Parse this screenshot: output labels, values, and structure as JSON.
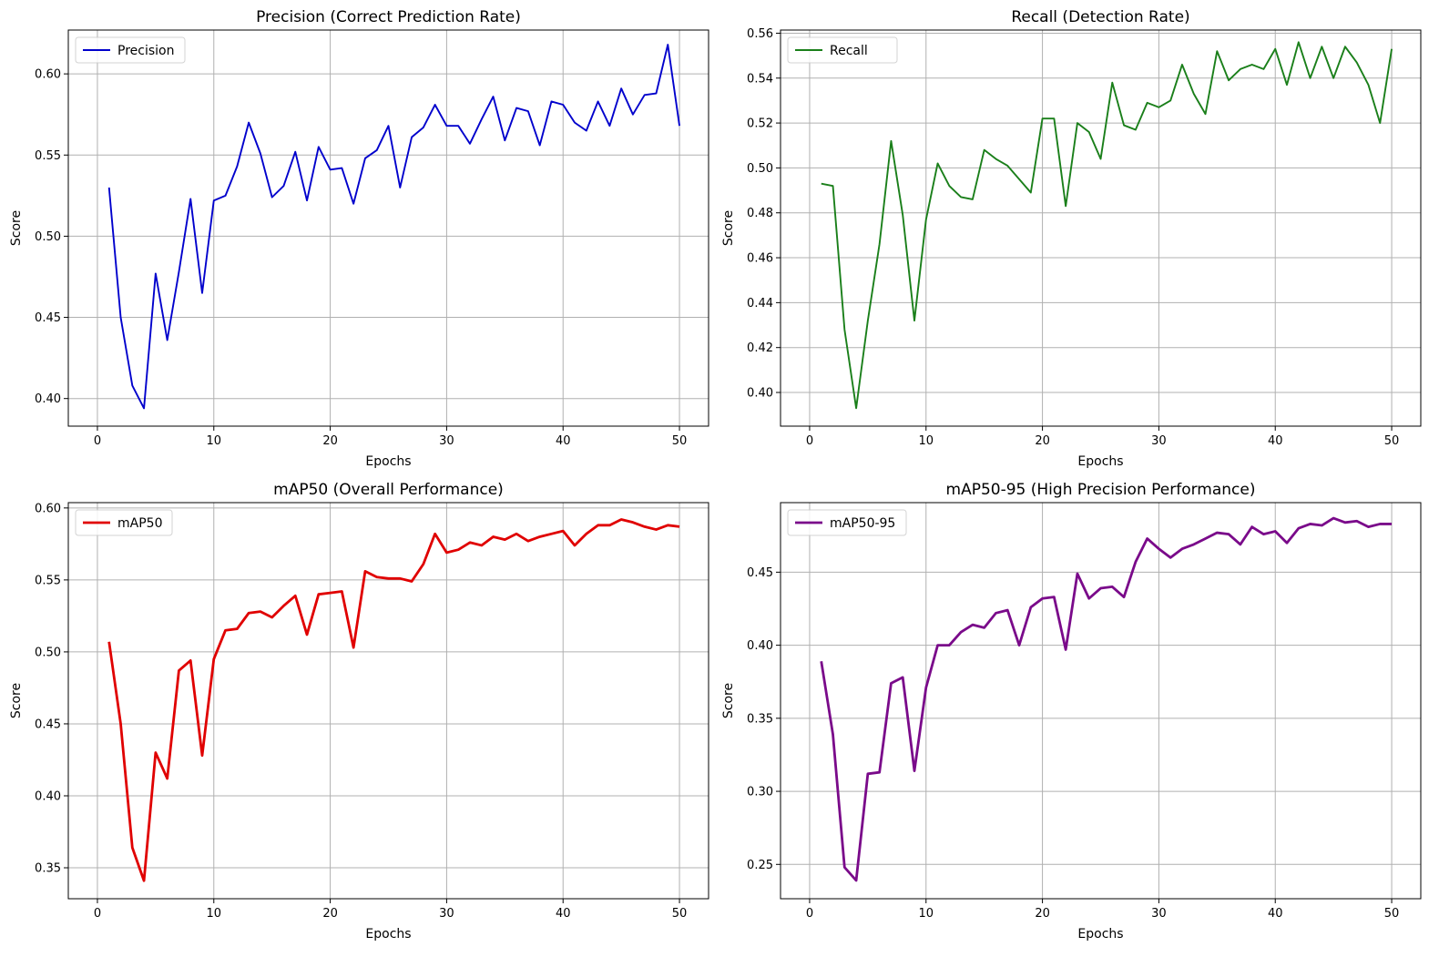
{
  "chart_data": [
    {
      "type": "line",
      "title": "Precision (Correct Prediction Rate)",
      "xlabel": "Epochs",
      "ylabel": "Score",
      "grid": true,
      "legend_position": "top-left",
      "xlim": [
        -2.5,
        52.5
      ],
      "ylim": [
        0.383,
        0.627
      ],
      "xticks": [
        0,
        10,
        20,
        30,
        40,
        50
      ],
      "yticks": [
        0.4,
        0.45,
        0.5,
        0.55,
        0.6
      ],
      "ytick_labels": [
        "0.40",
        "0.45",
        "0.50",
        "0.55",
        "0.60"
      ],
      "series": [
        {
          "name": "Precision",
          "color": "#0000cc",
          "x": [
            1,
            2,
            3,
            4,
            5,
            6,
            7,
            8,
            9,
            10,
            11,
            12,
            13,
            14,
            15,
            16,
            17,
            18,
            19,
            20,
            21,
            22,
            23,
            24,
            25,
            26,
            27,
            28,
            29,
            30,
            31,
            32,
            33,
            34,
            35,
            36,
            37,
            38,
            39,
            40,
            41,
            42,
            43,
            44,
            45,
            46,
            47,
            48,
            49,
            50
          ],
          "values": [
            0.53,
            0.45,
            0.408,
            0.394,
            0.477,
            0.436,
            0.478,
            0.523,
            0.465,
            0.522,
            0.525,
            0.543,
            0.57,
            0.551,
            0.524,
            0.531,
            0.552,
            0.522,
            0.555,
            0.541,
            0.542,
            0.52,
            0.548,
            0.553,
            0.568,
            0.53,
            0.561,
            0.567,
            0.581,
            0.568,
            0.568,
            0.557,
            0.572,
            0.586,
            0.559,
            0.579,
            0.577,
            0.556,
            0.583,
            0.581,
            0.57,
            0.565,
            0.583,
            0.568,
            0.591,
            0.575,
            0.587,
            0.588,
            0.618,
            0.568
          ]
        }
      ]
    },
    {
      "type": "line",
      "title": "Recall (Detection Rate)",
      "xlabel": "Epochs",
      "ylabel": "Score",
      "grid": true,
      "legend_position": "top-left",
      "xlim": [
        -2.5,
        52.5
      ],
      "ylim": [
        0.385,
        0.5614
      ],
      "xticks": [
        0,
        10,
        20,
        30,
        40,
        50
      ],
      "yticks": [
        0.4,
        0.42,
        0.44,
        0.46,
        0.48,
        0.5,
        0.52,
        0.54,
        0.56
      ],
      "ytick_labels": [
        "0.40",
        "0.42",
        "0.44",
        "0.46",
        "0.48",
        "0.50",
        "0.52",
        "0.54",
        "0.56"
      ],
      "series": [
        {
          "name": "Recall",
          "color": "#1a7f1a",
          "x": [
            1,
            2,
            3,
            4,
            5,
            6,
            7,
            8,
            9,
            10,
            11,
            12,
            13,
            14,
            15,
            16,
            17,
            18,
            19,
            20,
            21,
            22,
            23,
            24,
            25,
            26,
            27,
            28,
            29,
            30,
            31,
            32,
            33,
            34,
            35,
            36,
            37,
            38,
            39,
            40,
            41,
            42,
            43,
            44,
            45,
            46,
            47,
            48,
            49,
            50
          ],
          "values": [
            0.493,
            0.492,
            0.428,
            0.393,
            0.432,
            0.466,
            0.512,
            0.479,
            0.432,
            0.477,
            0.502,
            0.492,
            0.487,
            0.486,
            0.508,
            0.504,
            0.501,
            0.495,
            0.489,
            0.522,
            0.522,
            0.483,
            0.52,
            0.516,
            0.504,
            0.538,
            0.519,
            0.517,
            0.529,
            0.527,
            0.53,
            0.546,
            0.533,
            0.524,
            0.552,
            0.539,
            0.544,
            0.546,
            0.544,
            0.553,
            0.537,
            0.556,
            0.54,
            0.554,
            0.54,
            0.554,
            0.547,
            0.537,
            0.52,
            0.553
          ]
        }
      ]
    },
    {
      "type": "line",
      "title": "mAP50 (Overall Performance)",
      "xlabel": "Epochs",
      "ylabel": "Score",
      "grid": true,
      "legend_position": "top-left",
      "xlim": [
        -2.5,
        52.5
      ],
      "ylim": [
        0.3285,
        0.6037
      ],
      "xticks": [
        0,
        10,
        20,
        30,
        40,
        50
      ],
      "yticks": [
        0.35,
        0.4,
        0.45,
        0.5,
        0.55,
        0.6
      ],
      "ytick_labels": [
        "0.35",
        "0.40",
        "0.45",
        "0.50",
        "0.55",
        "0.60"
      ],
      "series": [
        {
          "name": "mAP50",
          "color": "#e00000",
          "x": [
            1,
            2,
            3,
            4,
            5,
            6,
            7,
            8,
            9,
            10,
            11,
            12,
            13,
            14,
            15,
            16,
            17,
            18,
            19,
            20,
            21,
            22,
            23,
            24,
            25,
            26,
            27,
            28,
            29,
            30,
            31,
            32,
            33,
            34,
            35,
            36,
            37,
            38,
            39,
            40,
            41,
            42,
            43,
            44,
            45,
            46,
            47,
            48,
            49,
            50
          ],
          "values": [
            0.507,
            0.45,
            0.364,
            0.341,
            0.43,
            0.412,
            0.487,
            0.494,
            0.428,
            0.495,
            0.515,
            0.516,
            0.527,
            0.528,
            0.524,
            0.532,
            0.539,
            0.512,
            0.54,
            0.541,
            0.542,
            0.503,
            0.556,
            0.552,
            0.551,
            0.551,
            0.549,
            0.561,
            0.582,
            0.569,
            0.571,
            0.576,
            0.574,
            0.58,
            0.578,
            0.582,
            0.577,
            0.58,
            0.582,
            0.584,
            0.574,
            0.582,
            0.588,
            0.588,
            0.592,
            0.59,
            0.587,
            0.585,
            0.588,
            0.587
          ]
        }
      ]
    },
    {
      "type": "line",
      "title": "mAP50-95 (High Precision Performance)",
      "xlabel": "Epochs",
      "ylabel": "Score",
      "grid": true,
      "legend_position": "top-left",
      "xlim": [
        -2.5,
        52.5
      ],
      "ylim": [
        0.2265,
        0.4976
      ],
      "xticks": [
        0,
        10,
        20,
        30,
        40,
        50
      ],
      "yticks": [
        0.25,
        0.3,
        0.35,
        0.4,
        0.45
      ],
      "ytick_labels": [
        "0.25",
        "0.30",
        "0.35",
        "0.40",
        "0.45"
      ],
      "series": [
        {
          "name": "mAP50-95",
          "color": "#7a0a8a",
          "x": [
            1,
            2,
            3,
            4,
            5,
            6,
            7,
            8,
            9,
            10,
            11,
            12,
            13,
            14,
            15,
            16,
            17,
            18,
            19,
            20,
            21,
            22,
            23,
            24,
            25,
            26,
            27,
            28,
            29,
            30,
            31,
            32,
            33,
            34,
            35,
            36,
            37,
            38,
            39,
            40,
            41,
            42,
            43,
            44,
            45,
            46,
            47,
            48,
            49,
            50
          ],
          "values": [
            0.389,
            0.339,
            0.248,
            0.239,
            0.312,
            0.313,
            0.374,
            0.378,
            0.314,
            0.371,
            0.4,
            0.4,
            0.409,
            0.414,
            0.412,
            0.422,
            0.424,
            0.4,
            0.426,
            0.432,
            0.433,
            0.397,
            0.449,
            0.432,
            0.439,
            0.44,
            0.433,
            0.457,
            0.473,
            0.466,
            0.46,
            0.466,
            0.469,
            0.473,
            0.477,
            0.476,
            0.469,
            0.481,
            0.476,
            0.478,
            0.47,
            0.48,
            0.483,
            0.482,
            0.487,
            0.484,
            0.485,
            0.481,
            0.483,
            0.483
          ]
        }
      ]
    }
  ]
}
